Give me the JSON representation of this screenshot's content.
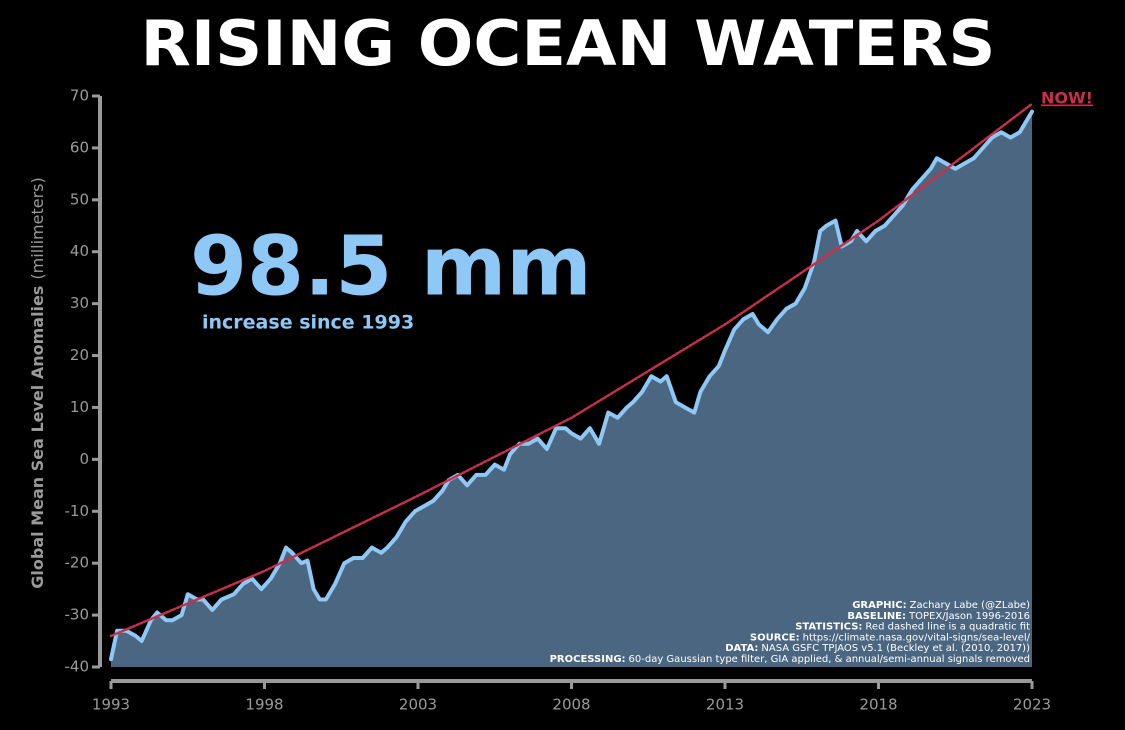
{
  "chart_data": {
    "type": "area-line",
    "title": "RISING OCEAN WATERS",
    "headline": "98.5 mm",
    "headline_sub": "increase since 1993",
    "end_label": "NOW!",
    "ylabel_bold": "Global Mean Sea Level Anomalies",
    "ylabel_unit": "(millimeters)",
    "xlim": [
      1993,
      2023
    ],
    "xticks": [
      1993,
      1998,
      2003,
      2008,
      2013,
      2018,
      2023
    ],
    "ylim": [
      -40,
      70
    ],
    "yticks": [
      -40,
      -30,
      -20,
      -10,
      0,
      10,
      20,
      30,
      40,
      50,
      60,
      70
    ],
    "series": [
      {
        "color": "#8ec8f6",
        "fill": "#4b6680",
        "x": [
          1993.0,
          1993.2,
          1993.5,
          1993.8,
          1994.0,
          1994.3,
          1994.5,
          1994.8,
          1995.0,
          1995.3,
          1995.5,
          1995.8,
          1996.0,
          1996.3,
          1996.6,
          1997.0,
          1997.3,
          1997.6,
          1997.9,
          1998.2,
          1998.5,
          1998.7,
          1998.9,
          1999.2,
          1999.4,
          1999.6,
          1999.8,
          2000.0,
          2000.3,
          2000.6,
          2000.9,
          2001.2,
          2001.5,
          2001.8,
          2002.0,
          2002.3,
          2002.6,
          2002.9,
          2003.2,
          2003.5,
          2003.8,
          2004.0,
          2004.3,
          2004.6,
          2004.9,
          2005.2,
          2005.5,
          2005.8,
          2006.0,
          2006.3,
          2006.6,
          2006.9,
          2007.2,
          2007.5,
          2007.8,
          2008.0,
          2008.3,
          2008.6,
          2008.9,
          2009.2,
          2009.5,
          2009.8,
          2010.0,
          2010.3,
          2010.6,
          2010.9,
          2011.1,
          2011.4,
          2011.7,
          2012.0,
          2012.2,
          2012.5,
          2012.8,
          2013.0,
          2013.3,
          2013.6,
          2013.9,
          2014.1,
          2014.4,
          2014.7,
          2015.0,
          2015.3,
          2015.6,
          2015.9,
          2016.1,
          2016.3,
          2016.6,
          2016.8,
          2017.1,
          2017.3,
          2017.6,
          2017.9,
          2018.2,
          2018.5,
          2018.8,
          2019.1,
          2019.4,
          2019.7,
          2019.9,
          2020.2,
          2020.5,
          2020.8,
          2021.1,
          2021.4,
          2021.7,
          2022.0,
          2022.3,
          2022.6,
          2022.9,
          2023.0
        ],
        "values": [
          -38.5,
          -33,
          -33,
          -34,
          -35,
          -31,
          -29.5,
          -31,
          -31,
          -30,
          -26,
          -27,
          -27,
          -29,
          -27,
          -26,
          -24,
          -23,
          -25,
          -23,
          -20,
          -17,
          -18,
          -20,
          -19.5,
          -25,
          -27,
          -27,
          -24,
          -20,
          -19,
          -19,
          -17,
          -18,
          -17,
          -15,
          -12,
          -10,
          -9,
          -8,
          -6,
          -4,
          -3,
          -5,
          -3,
          -3,
          -1,
          -2,
          1,
          3,
          3,
          4,
          2,
          6,
          6,
          5,
          4,
          6,
          3,
          9,
          8,
          10,
          11,
          13,
          16,
          15,
          16,
          11,
          10,
          9,
          13,
          16,
          18,
          21,
          25,
          27,
          28,
          26,
          24.5,
          27,
          29,
          30,
          33,
          38,
          44,
          45,
          46,
          41,
          42,
          44,
          42,
          44,
          45,
          47,
          49,
          52,
          54,
          56,
          58,
          57,
          56,
          57,
          58,
          60,
          62,
          63,
          62,
          63,
          66,
          67
        ]
      },
      {
        "color": "#c8304a",
        "dashed": true,
        "x": [
          1993,
          1998,
          2003,
          2008,
          2013,
          2018,
          2023
        ],
        "values": [
          -34,
          -21.5,
          -7,
          8,
          26,
          46,
          68.5
        ]
      }
    ],
    "credits": [
      {
        "label": "GRAPHIC:",
        "text": "Zachary Labe (@ZLabe)"
      },
      {
        "label": "BASELINE:",
        "text": "TOPEX/Jason 1996-2016"
      },
      {
        "label": "STATISTICS:",
        "text": "Red dashed line is a quadratic fit"
      },
      {
        "label": "SOURCE:",
        "text": "https://climate.nasa.gov/vital-signs/sea-level/"
      },
      {
        "label": "DATA:",
        "text": "NASA GSFC TPJAOS v5.1 (Beckley et al. (2010, 2017))"
      },
      {
        "label": "PROCESSING:",
        "text": "60-day Gaussian type filter, GIA applied, & annual/semi-annual signals removed"
      }
    ]
  }
}
